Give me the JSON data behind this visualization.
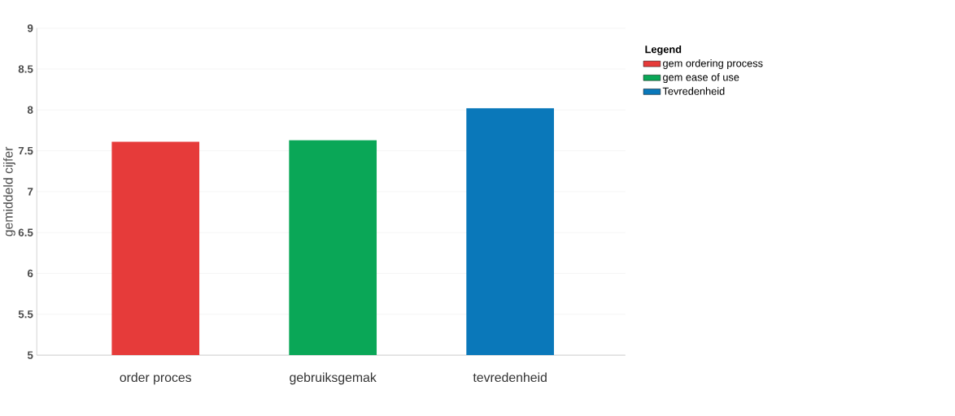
{
  "chart_data": {
    "type": "bar",
    "ylabel": "gemiddeld cijfer",
    "legend_title": "Legend",
    "categories": [
      "order proces",
      "gebruiksgemak",
      "tevredenheid"
    ],
    "series": [
      {
        "name": "gem ordering process",
        "color": "#e63b3a",
        "values": [
          7.61,
          null,
          null
        ]
      },
      {
        "name": "gem ease of use",
        "color": "#0aa757",
        "values": [
          null,
          7.63,
          null
        ]
      },
      {
        "name": "Tevredenheid",
        "color": "#0a78ba",
        "values": [
          null,
          null,
          8.02
        ]
      }
    ],
    "ylim": [
      5,
      9
    ],
    "yticks": [
      5,
      5.5,
      6,
      6.5,
      7,
      7.5,
      8,
      8.5,
      9
    ],
    "grid": "y",
    "legend": "top right"
  }
}
